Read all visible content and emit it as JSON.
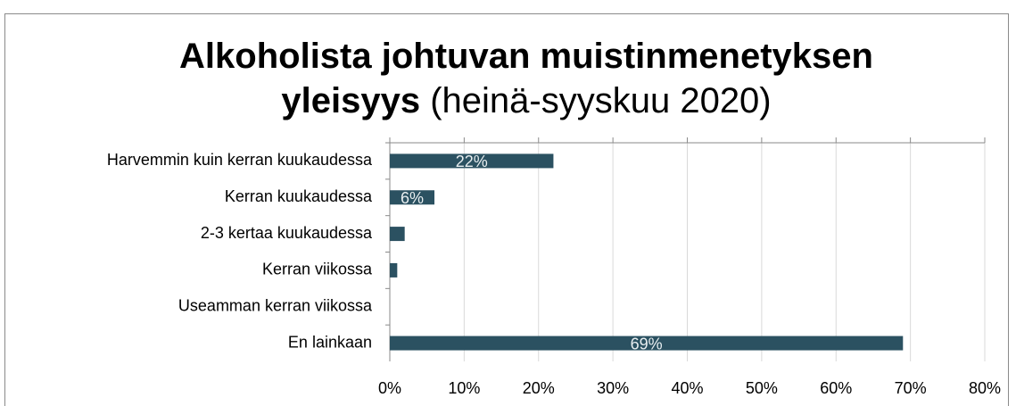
{
  "chart_data": {
    "type": "hbar",
    "title": "Alkoholista johtuvan muistinmenetyksen yleisyys",
    "subtitle": "(heinä-syyskuu 2020)",
    "categories": [
      "Harvemmin kuin kerran kuukaudessa",
      "Kerran kuukaudessa",
      "2-3 kertaa kuukaudessa",
      "Kerran viikossa",
      "Useamman kerran viikossa",
      "En lainkaan"
    ],
    "values": [
      22,
      6,
      2,
      1,
      0,
      69
    ],
    "value_labels": [
      "22%",
      "6%",
      null,
      null,
      null,
      "69%"
    ],
    "color": "#2b5161",
    "xlim": [
      0,
      80
    ],
    "xticks": [
      {
        "value": 0,
        "label": "0%"
      },
      {
        "value": 10,
        "label": "10%"
      },
      {
        "value": 20,
        "label": "20%"
      },
      {
        "value": 30,
        "label": "30%"
      },
      {
        "value": 40,
        "label": "40%"
      },
      {
        "value": 50,
        "label": "50%"
      },
      {
        "value": 60,
        "label": "60%"
      },
      {
        "value": 70,
        "label": "70%"
      },
      {
        "value": 80,
        "label": "80%"
      }
    ],
    "grid": true
  }
}
